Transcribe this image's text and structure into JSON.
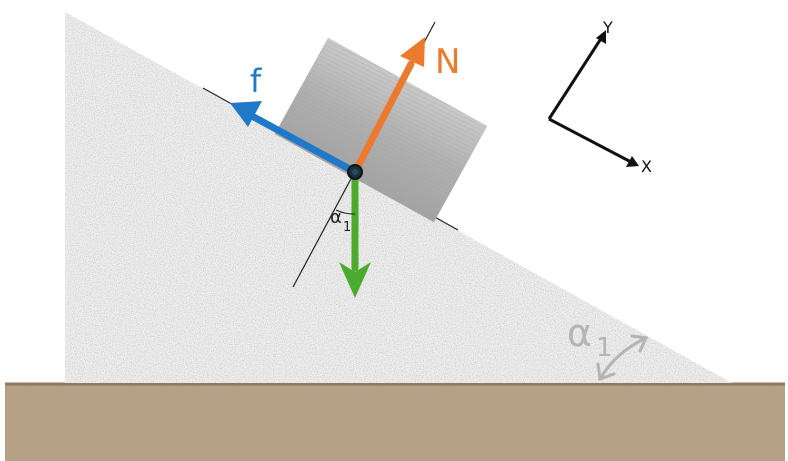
{
  "labels": {
    "friction": "f",
    "normal": "N",
    "angle_small_symbol": "α",
    "angle_small_sub": "1",
    "angle_large_symbol": "α",
    "angle_large_sub": "1",
    "axis_y": "Y",
    "axis_x": "X"
  },
  "colors": {
    "friction": "#1f78c8",
    "normal": "#ec7a2e",
    "weight": "#4caa2c",
    "ground": "#b79f83",
    "ground_line": "#8e7a62",
    "incline": "#efefef",
    "block": "#b3b3b3",
    "angle_label": "#b4b4b4",
    "pivot": "#1b2e3c"
  }
}
